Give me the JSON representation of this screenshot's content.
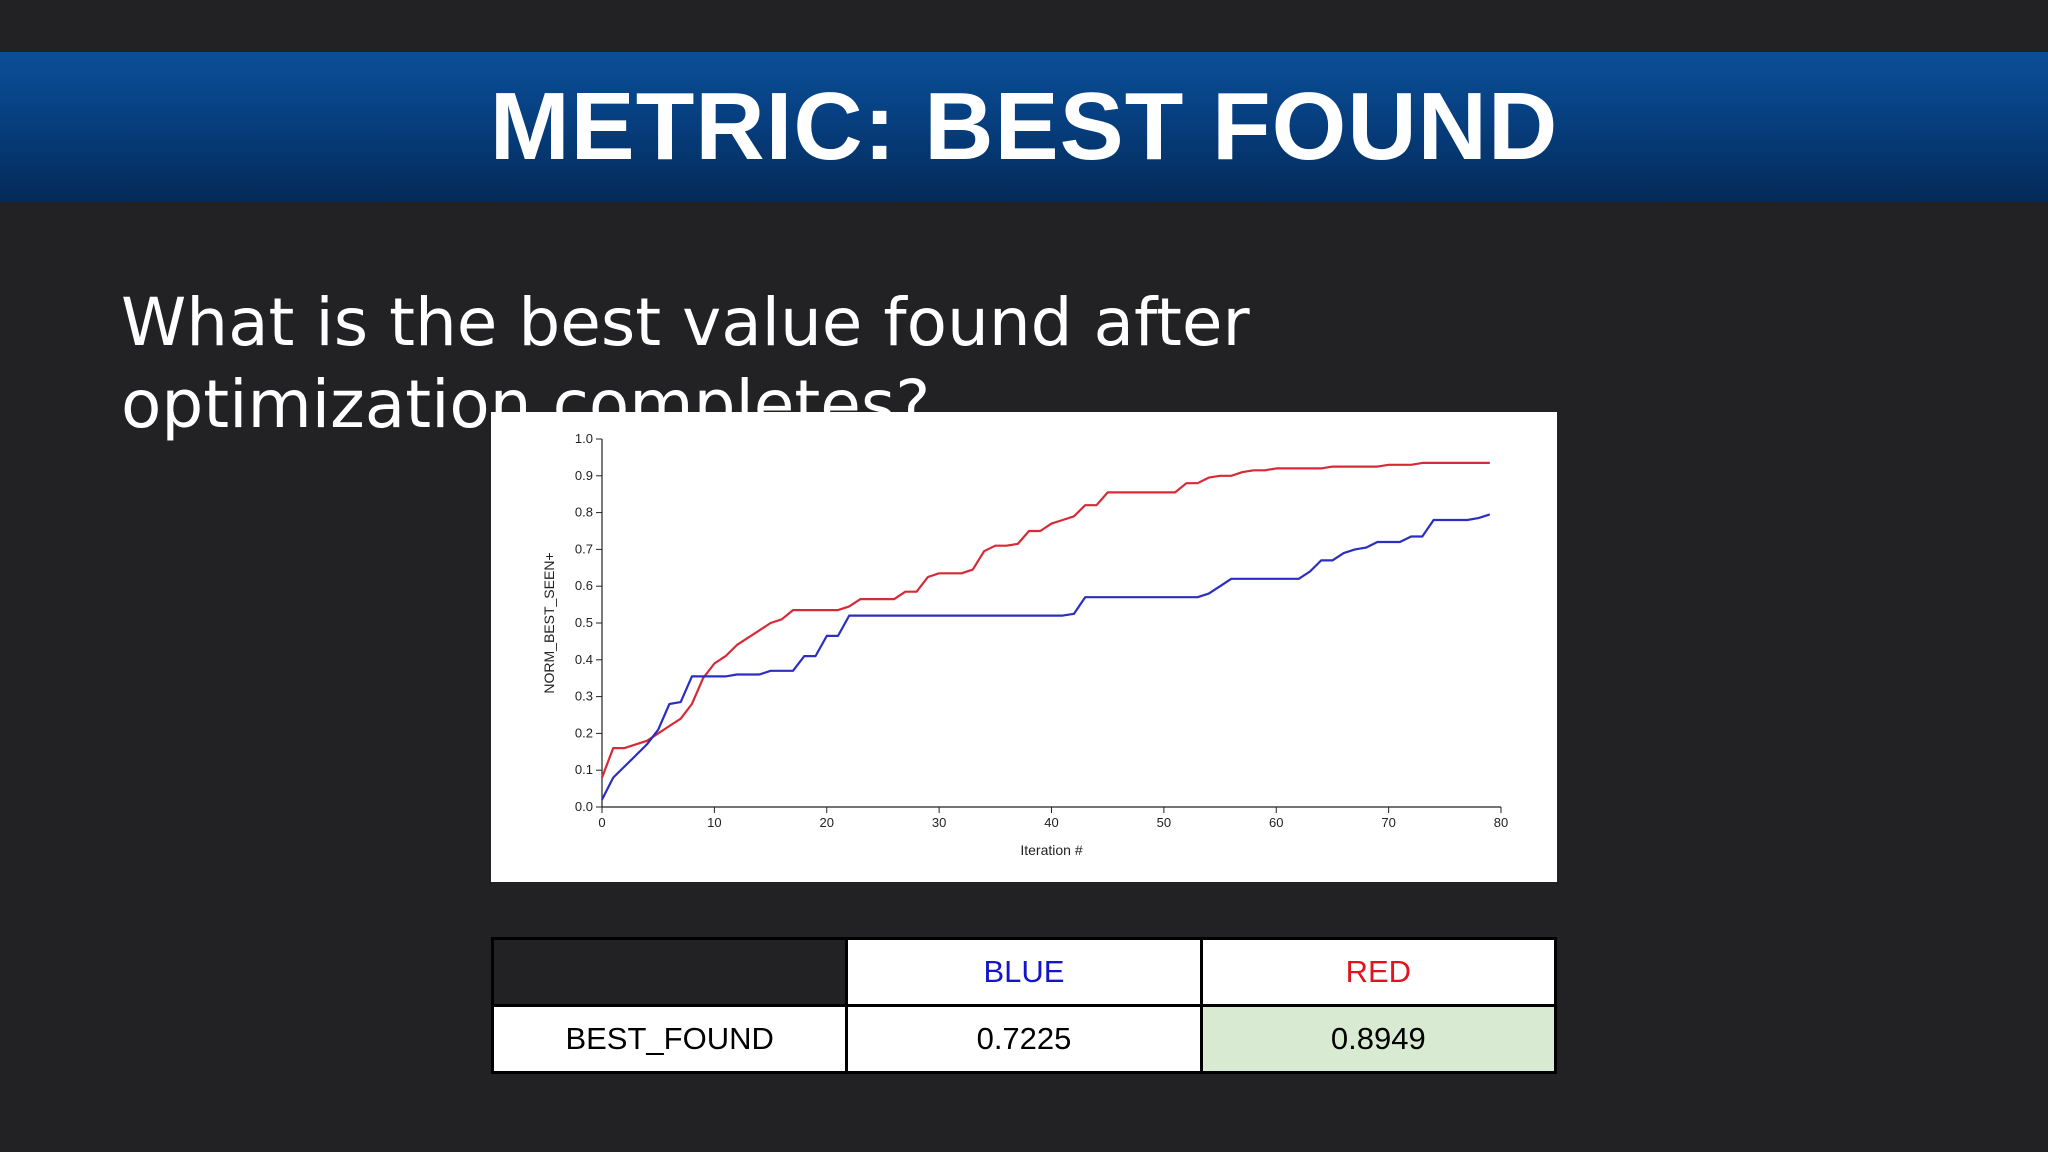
{
  "slide": {
    "title": "METRIC: BEST FOUND",
    "question": "What is the best value found after optimization completes?"
  },
  "colors": {
    "blue": "#2b2fc0",
    "red": "#d62a36",
    "best_cell": "#d9ead3"
  },
  "chart_data": {
    "type": "line",
    "xlabel": "Iteration #",
    "ylabel": "NORM_BEST_SEEN+",
    "xlim": [
      0,
      80
    ],
    "ylim": [
      0,
      1.0
    ],
    "xticks": [
      "0",
      "10",
      "20",
      "30",
      "40",
      "50",
      "60",
      "70",
      "80"
    ],
    "yticks": [
      "0.0",
      "0.1",
      "0.2",
      "0.3",
      "0.4",
      "0.5",
      "0.6",
      "0.7",
      "0.8",
      "0.9",
      "1.0"
    ],
    "grid": false,
    "series": [
      {
        "color": "#d62a36",
        "points": [
          [
            0,
            0.08
          ],
          [
            1,
            0.16
          ],
          [
            2,
            0.16
          ],
          [
            3,
            0.17
          ],
          [
            4,
            0.18
          ],
          [
            5,
            0.2
          ],
          [
            6,
            0.22
          ],
          [
            7,
            0.24
          ],
          [
            8,
            0.28
          ],
          [
            9,
            0.35
          ],
          [
            10,
            0.39
          ],
          [
            11,
            0.41
          ],
          [
            12,
            0.44
          ],
          [
            13,
            0.46
          ],
          [
            14,
            0.48
          ],
          [
            15,
            0.5
          ],
          [
            16,
            0.51
          ],
          [
            17,
            0.535
          ],
          [
            18,
            0.535
          ],
          [
            19,
            0.535
          ],
          [
            20,
            0.535
          ],
          [
            21,
            0.535
          ],
          [
            22,
            0.545
          ],
          [
            23,
            0.565
          ],
          [
            24,
            0.565
          ],
          [
            25,
            0.565
          ],
          [
            26,
            0.565
          ],
          [
            27,
            0.585
          ],
          [
            28,
            0.585
          ],
          [
            29,
            0.625
          ],
          [
            30,
            0.635
          ],
          [
            31,
            0.635
          ],
          [
            32,
            0.635
          ],
          [
            33,
            0.645
          ],
          [
            34,
            0.695
          ],
          [
            35,
            0.71
          ],
          [
            36,
            0.71
          ],
          [
            37,
            0.715
          ],
          [
            38,
            0.75
          ],
          [
            39,
            0.75
          ],
          [
            40,
            0.77
          ],
          [
            41,
            0.78
          ],
          [
            42,
            0.79
          ],
          [
            43,
            0.82
          ],
          [
            44,
            0.82
          ],
          [
            45,
            0.855
          ],
          [
            46,
            0.855
          ],
          [
            47,
            0.855
          ],
          [
            48,
            0.855
          ],
          [
            49,
            0.855
          ],
          [
            50,
            0.855
          ],
          [
            51,
            0.855
          ],
          [
            52,
            0.88
          ],
          [
            53,
            0.88
          ],
          [
            54,
            0.895
          ],
          [
            55,
            0.9
          ],
          [
            56,
            0.9
          ],
          [
            57,
            0.91
          ],
          [
            58,
            0.915
          ],
          [
            59,
            0.915
          ],
          [
            60,
            0.92
          ],
          [
            61,
            0.92
          ],
          [
            62,
            0.92
          ],
          [
            63,
            0.92
          ],
          [
            64,
            0.92
          ],
          [
            65,
            0.925
          ],
          [
            66,
            0.925
          ],
          [
            67,
            0.925
          ],
          [
            68,
            0.925
          ],
          [
            69,
            0.925
          ],
          [
            70,
            0.93
          ],
          [
            71,
            0.93
          ],
          [
            72,
            0.93
          ],
          [
            73,
            0.935
          ],
          [
            74,
            0.935
          ],
          [
            75,
            0.935
          ],
          [
            76,
            0.935
          ],
          [
            77,
            0.935
          ],
          [
            78,
            0.935
          ],
          [
            79,
            0.935
          ]
        ]
      },
      {
        "color": "#2b2fc0",
        "points": [
          [
            0,
            0.02
          ],
          [
            1,
            0.08
          ],
          [
            2,
            0.11
          ],
          [
            3,
            0.14
          ],
          [
            4,
            0.17
          ],
          [
            5,
            0.21
          ],
          [
            6,
            0.28
          ],
          [
            7,
            0.285
          ],
          [
            8,
            0.355
          ],
          [
            9,
            0.355
          ],
          [
            10,
            0.355
          ],
          [
            11,
            0.355
          ],
          [
            12,
            0.36
          ],
          [
            13,
            0.36
          ],
          [
            14,
            0.36
          ],
          [
            15,
            0.37
          ],
          [
            16,
            0.37
          ],
          [
            17,
            0.37
          ],
          [
            18,
            0.41
          ],
          [
            19,
            0.41
          ],
          [
            20,
            0.465
          ],
          [
            21,
            0.465
          ],
          [
            22,
            0.52
          ],
          [
            23,
            0.52
          ],
          [
            24,
            0.52
          ],
          [
            25,
            0.52
          ],
          [
            26,
            0.52
          ],
          [
            27,
            0.52
          ],
          [
            28,
            0.52
          ],
          [
            29,
            0.52
          ],
          [
            30,
            0.52
          ],
          [
            31,
            0.52
          ],
          [
            32,
            0.52
          ],
          [
            33,
            0.52
          ],
          [
            34,
            0.52
          ],
          [
            35,
            0.52
          ],
          [
            36,
            0.52
          ],
          [
            37,
            0.52
          ],
          [
            38,
            0.52
          ],
          [
            39,
            0.52
          ],
          [
            40,
            0.52
          ],
          [
            41,
            0.52
          ],
          [
            42,
            0.525
          ],
          [
            43,
            0.57
          ],
          [
            44,
            0.57
          ],
          [
            45,
            0.57
          ],
          [
            46,
            0.57
          ],
          [
            47,
            0.57
          ],
          [
            48,
            0.57
          ],
          [
            49,
            0.57
          ],
          [
            50,
            0.57
          ],
          [
            51,
            0.57
          ],
          [
            52,
            0.57
          ],
          [
            53,
            0.57
          ],
          [
            54,
            0.58
          ],
          [
            55,
            0.6
          ],
          [
            56,
            0.62
          ],
          [
            57,
            0.62
          ],
          [
            58,
            0.62
          ],
          [
            59,
            0.62
          ],
          [
            60,
            0.62
          ],
          [
            61,
            0.62
          ],
          [
            62,
            0.62
          ],
          [
            63,
            0.64
          ],
          [
            64,
            0.67
          ],
          [
            65,
            0.67
          ],
          [
            66,
            0.69
          ],
          [
            67,
            0.7
          ],
          [
            68,
            0.705
          ],
          [
            69,
            0.72
          ],
          [
            70,
            0.72
          ],
          [
            71,
            0.72
          ],
          [
            72,
            0.735
          ],
          [
            73,
            0.735
          ],
          [
            74,
            0.78
          ],
          [
            75,
            0.78
          ],
          [
            76,
            0.78
          ],
          [
            77,
            0.78
          ],
          [
            78,
            0.785
          ],
          [
            79,
            0.795
          ]
        ]
      }
    ]
  },
  "table": {
    "headers": [
      "",
      "BLUE",
      "RED"
    ],
    "row_label": "BEST_FOUND",
    "blue_value": "0.7225",
    "red_value": "0.8949"
  }
}
